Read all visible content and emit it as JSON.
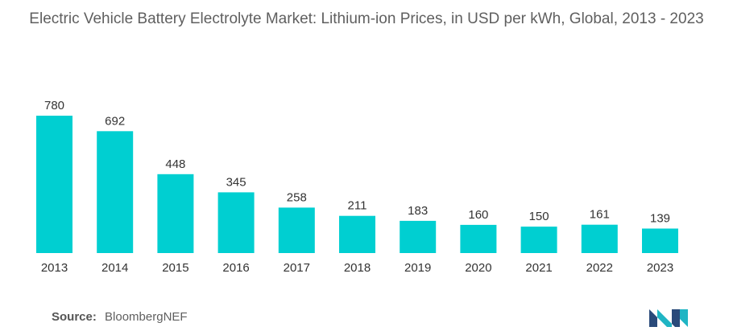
{
  "title": "Electric Vehicle Battery Electrolyte Market: Lithium-ion Prices, in USD per kWh, Global, 2013 - 2023",
  "source": {
    "label": "Source:",
    "value": "BloombergNEF"
  },
  "colors": {
    "bar": "#00CFD1",
    "text": "#5f5f5f",
    "logo_dark": "#2a4a7a",
    "logo_light": "#1fb5c4"
  },
  "logo_icon": "mordor-intelligence-logo",
  "chart_data": {
    "type": "bar",
    "categories": [
      "2013",
      "2014",
      "2015",
      "2016",
      "2017",
      "2018",
      "2019",
      "2020",
      "2021",
      "2022",
      "2023"
    ],
    "values": [
      780,
      692,
      448,
      345,
      258,
      211,
      183,
      160,
      150,
      161,
      139
    ],
    "title": "Electric Vehicle Battery Electrolyte Market: Lithium-ion Prices, in USD per kWh, Global, 2013 - 2023",
    "xlabel": "",
    "ylabel": "",
    "ylim": [
      0,
      780
    ],
    "grid": false,
    "legend": "none",
    "data_labels": true
  }
}
